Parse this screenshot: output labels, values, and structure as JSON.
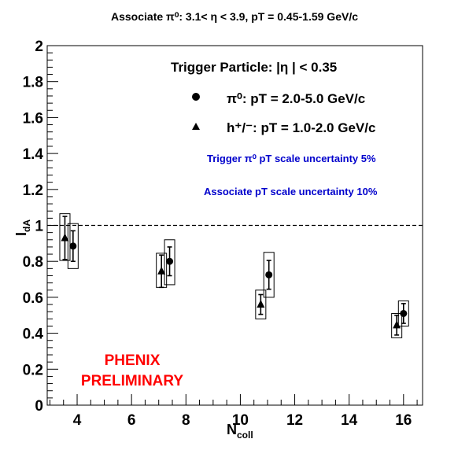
{
  "chart_data": {
    "type": "scatter",
    "title": "Associate π⁰: 3.1< η < 3.9, pT = 0.45-1.59 GeV/c",
    "xlabel": "N",
    "xlabel_sub": "coll",
    "ylabel": "I",
    "ylabel_sub": "dA",
    "xlim": [
      2.9,
      16.7
    ],
    "ylim": [
      0,
      2
    ],
    "x_ticks": [
      "4",
      "6",
      "8",
      "10",
      "12",
      "14",
      "16"
    ],
    "y_ticks": [
      "0",
      "0.2",
      "0.4",
      "0.6",
      "0.8",
      "1",
      "1.2",
      "1.4",
      "1.6",
      "1.8",
      "2"
    ],
    "grid": false,
    "reference_line": 1,
    "legend_position": "top-right",
    "legend_title": "Trigger Particle: |η | < 0.35",
    "series": [
      {
        "name": "π⁰: pT = 2.0-5.0 GeV/c",
        "marker": "circle",
        "x": [
          3.85,
          7.4,
          11.05,
          16.0
        ],
        "y": [
          0.885,
          0.8,
          0.725,
          0.51
        ],
        "err_low": [
          0.085,
          0.08,
          0.08,
          0.055
        ],
        "err_high": [
          0.085,
          0.08,
          0.08,
          0.055
        ],
        "sys_low": [
          0.125,
          0.13,
          0.125,
          0.07
        ],
        "sys_high": [
          0.125,
          0.12,
          0.125,
          0.07
        ]
      },
      {
        "name": "h⁺/⁻: pT = 1.0-2.0 GeV/c",
        "marker": "triangle",
        "x": [
          3.55,
          7.1,
          10.75,
          15.75
        ],
        "y": [
          0.93,
          0.745,
          0.56,
          0.445
        ],
        "err_low": [
          0.12,
          0.09,
          0.055,
          0.055
        ],
        "err_high": [
          0.12,
          0.09,
          0.055,
          0.055
        ],
        "sys_low": [
          0.125,
          0.09,
          0.08,
          0.07
        ],
        "sys_high": [
          0.135,
          0.1,
          0.08,
          0.065
        ]
      }
    ],
    "annotations": [
      "Trigger π⁰ pT scale uncertainty 5%",
      "Associate pT scale uncertainty 10%",
      "PHENIX",
      "PRELIMINARY"
    ],
    "colors": {
      "axes": "#000000",
      "annotation_blue": "#0000cc",
      "preliminary_red": "#ff0000"
    }
  }
}
